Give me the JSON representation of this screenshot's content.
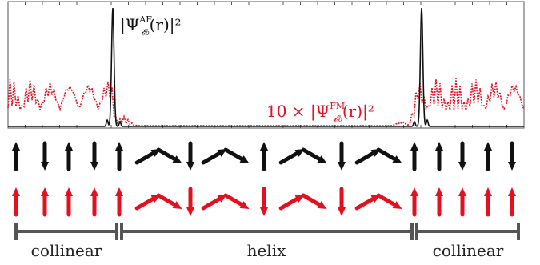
{
  "labels": {
    "af_density": "|Ψ^AF_𝓔₀(r)|²",
    "fm_density": "10 × |Ψ^FM_𝓔₀(r)|²"
  },
  "af_density_parts": {
    "prefix": "|Ψ",
    "sup": "AF",
    "sub": "𝓔₀",
    "suffix": "(r)|²"
  },
  "fm_density_parts": {
    "prefix": "10 × |Ψ",
    "sup": "FM",
    "sub": "𝓔₀",
    "suffix": "(r)|²"
  },
  "regions": [
    {
      "label": "collinear"
    },
    {
      "label": "helix"
    },
    {
      "label": "collinear"
    }
  ],
  "colors": {
    "af": "#111111",
    "fm": "#e3101f",
    "frame": "#555555"
  },
  "spin_chains": {
    "af_angles_deg": [
      0,
      180,
      0,
      180,
      0,
      60,
      120,
      180,
      60,
      120,
      0,
      60,
      120,
      180,
      60,
      120,
      0,
      0,
      180,
      0,
      180,
      0
    ],
    "fm_angles_deg": [
      0,
      0,
      0,
      0,
      0,
      60,
      120,
      180,
      60,
      120,
      180,
      60,
      120,
      180,
      60,
      120,
      0,
      0,
      0,
      0,
      0,
      0
    ]
  }
}
